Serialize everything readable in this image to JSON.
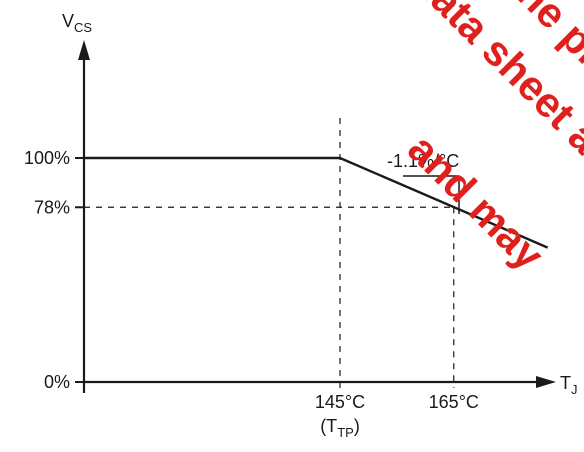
{
  "chart_data": {
    "type": "line",
    "x_axis": {
      "label": "T",
      "label_sub": "J",
      "ticks": [
        {
          "value": 145,
          "label": "145°C",
          "sublabel_main": "(T",
          "sublabel_sub": "TP",
          "sublabel_end": ")"
        },
        {
          "value": 165,
          "label": "165°C"
        }
      ],
      "range": [
        100,
        200
      ]
    },
    "y_axis": {
      "label": "V",
      "label_sub": "CS",
      "ticks": [
        {
          "value": 100,
          "label": "100%"
        },
        {
          "value": 78,
          "label": "78%"
        },
        {
          "value": 0,
          "label": "0%"
        }
      ],
      "range": [
        0,
        150
      ]
    },
    "series": [
      {
        "points": [
          [
            100,
            100
          ],
          [
            145,
            100
          ],
          [
            181.5,
            60
          ]
        ]
      }
    ],
    "annotations": [
      {
        "text": "-1.1%/°C",
        "type": "slope-triangle"
      }
    ],
    "reference_lines": [
      {
        "orientation": "vertical",
        "x": 145,
        "y_to": 100
      },
      {
        "orientation": "vertical",
        "x": 165,
        "y_to": 78
      },
      {
        "orientation": "horizontal",
        "y": 78,
        "x_to": 165
      }
    ],
    "grid": false
  },
  "watermark": {
    "lines": [
      "The product (",
      "data sheet are no",
      "and may"
    ]
  }
}
